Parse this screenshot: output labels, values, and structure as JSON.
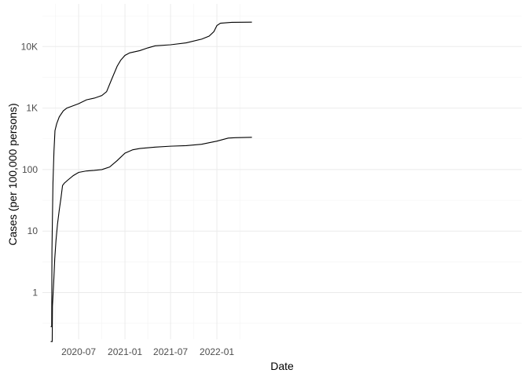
{
  "chart_data": {
    "type": "line",
    "xlabel": "Date",
    "ylabel": "Cases (per 100,000 persons)",
    "yscale": "log10",
    "ylim": [
      0.15,
      40000
    ],
    "xlim": [
      "2020-03-01",
      "2022-06-01"
    ],
    "grid": true,
    "x_ticks": [
      {
        "date": "2020-07-01",
        "label": "2020-07"
      },
      {
        "date": "2021-01-01",
        "label": "2021-01"
      },
      {
        "date": "2021-07-01",
        "label": "2021-07"
      },
      {
        "date": "2022-01-01",
        "label": "2022-01"
      }
    ],
    "y_ticks": [
      {
        "value": 1,
        "label": "1"
      },
      {
        "value": 10,
        "label": "10"
      },
      {
        "value": 100,
        "label": "100"
      },
      {
        "value": 1000,
        "label": "1K"
      },
      {
        "value": 10000,
        "label": "10K"
      }
    ],
    "series": [
      {
        "color": "#000000",
        "points": [
          [
            "2020-03-12",
            0.28
          ],
          [
            "2020-03-16",
            0.28
          ],
          [
            "2020-03-17",
            5
          ],
          [
            "2020-03-21",
            60
          ],
          [
            "2020-03-25",
            200
          ],
          [
            "2020-03-29",
            430
          ],
          [
            "2020-04-05",
            560
          ],
          [
            "2020-04-15",
            720
          ],
          [
            "2020-05-01",
            900
          ],
          [
            "2020-05-15",
            1000
          ],
          [
            "2020-06-01",
            1060
          ],
          [
            "2020-07-01",
            1180
          ],
          [
            "2020-08-01",
            1360
          ],
          [
            "2020-09-01",
            1450
          ],
          [
            "2020-10-01",
            1600
          ],
          [
            "2020-10-20",
            1850
          ],
          [
            "2020-11-10",
            3000
          ],
          [
            "2020-12-01",
            4800
          ],
          [
            "2020-12-15",
            6000
          ],
          [
            "2021-01-01",
            7200
          ],
          [
            "2021-01-20",
            7900
          ],
          [
            "2021-03-01",
            8600
          ],
          [
            "2021-04-01",
            9500
          ],
          [
            "2021-05-01",
            10300
          ],
          [
            "2021-07-01",
            10700
          ],
          [
            "2021-09-01",
            11500
          ],
          [
            "2021-11-01",
            13200
          ],
          [
            "2021-12-01",
            14800
          ],
          [
            "2021-12-20",
            17500
          ],
          [
            "2022-01-01",
            22000
          ],
          [
            "2022-01-15",
            24000
          ],
          [
            "2022-03-01",
            24800
          ],
          [
            "2022-05-20",
            25000
          ]
        ]
      },
      {
        "color": "#000000",
        "points": [
          [
            "2020-03-12",
            0.16
          ],
          [
            "2020-03-18",
            0.16
          ],
          [
            "2020-03-19",
            0.6
          ],
          [
            "2020-03-24",
            1.5
          ],
          [
            "2020-03-28",
            3.5
          ],
          [
            "2020-04-02",
            7
          ],
          [
            "2020-04-08",
            13
          ],
          [
            "2020-04-15",
            22
          ],
          [
            "2020-04-22",
            35
          ],
          [
            "2020-04-28",
            55
          ],
          [
            "2020-05-05",
            60
          ],
          [
            "2020-05-20",
            68
          ],
          [
            "2020-06-10",
            80
          ],
          [
            "2020-07-01",
            90
          ],
          [
            "2020-08-01",
            95
          ],
          [
            "2020-09-01",
            97
          ],
          [
            "2020-10-01",
            100
          ],
          [
            "2020-11-01",
            110
          ],
          [
            "2020-12-01",
            140
          ],
          [
            "2021-01-01",
            185
          ],
          [
            "2021-02-01",
            210
          ],
          [
            "2021-03-01",
            220
          ],
          [
            "2021-05-01",
            232
          ],
          [
            "2021-07-01",
            240
          ],
          [
            "2021-09-01",
            245
          ],
          [
            "2021-11-01",
            258
          ],
          [
            "2022-01-01",
            290
          ],
          [
            "2022-02-15",
            325
          ],
          [
            "2022-03-15",
            330
          ],
          [
            "2022-05-20",
            335
          ]
        ]
      }
    ]
  }
}
